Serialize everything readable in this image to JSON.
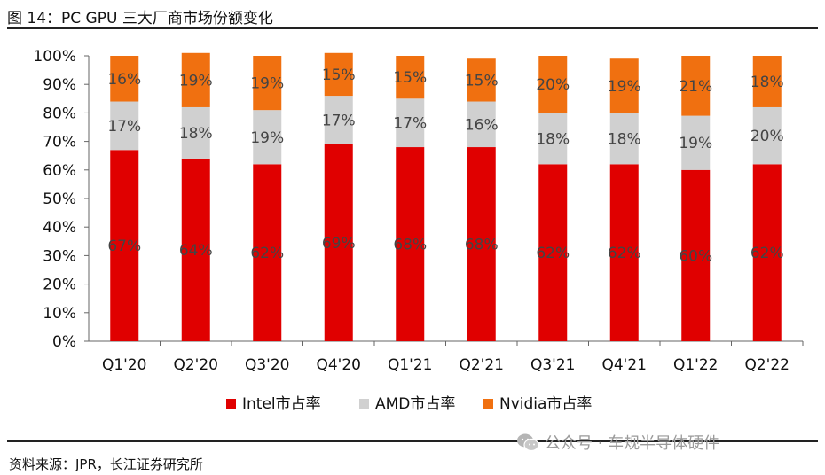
{
  "figure": {
    "title": "图 14：PC GPU 三大厂商市场份额变化",
    "source": "资料来源：JPR，长江证券研究所",
    "watermark": "公众号 · 车规半导体硬件"
  },
  "chart_data": {
    "type": "bar",
    "stacked": true,
    "categories": [
      "Q1'20",
      "Q2'20",
      "Q3'20",
      "Q4'20",
      "Q1'21",
      "Q2'21",
      "Q3'21",
      "Q4'21",
      "Q1'22",
      "Q2'22"
    ],
    "series": [
      {
        "name": "Intel市占率",
        "color": "#e00000",
        "values": [
          67,
          64,
          62,
          69,
          68,
          68,
          62,
          62,
          60,
          62
        ]
      },
      {
        "name": "AMD市占率",
        "color": "#d0d0d0",
        "values": [
          17,
          18,
          19,
          17,
          17,
          16,
          18,
          18,
          19,
          20
        ]
      },
      {
        "name": "Nvidia市占率",
        "color": "#f07010",
        "values": [
          16,
          19,
          19,
          15,
          15,
          15,
          20,
          19,
          21,
          18
        ]
      }
    ],
    "yticks": [
      "0%",
      "10%",
      "20%",
      "30%",
      "40%",
      "50%",
      "60%",
      "70%",
      "80%",
      "90%",
      "100%"
    ],
    "ylim": [
      0,
      100
    ],
    "legend_position": "bottom",
    "grid": false
  }
}
